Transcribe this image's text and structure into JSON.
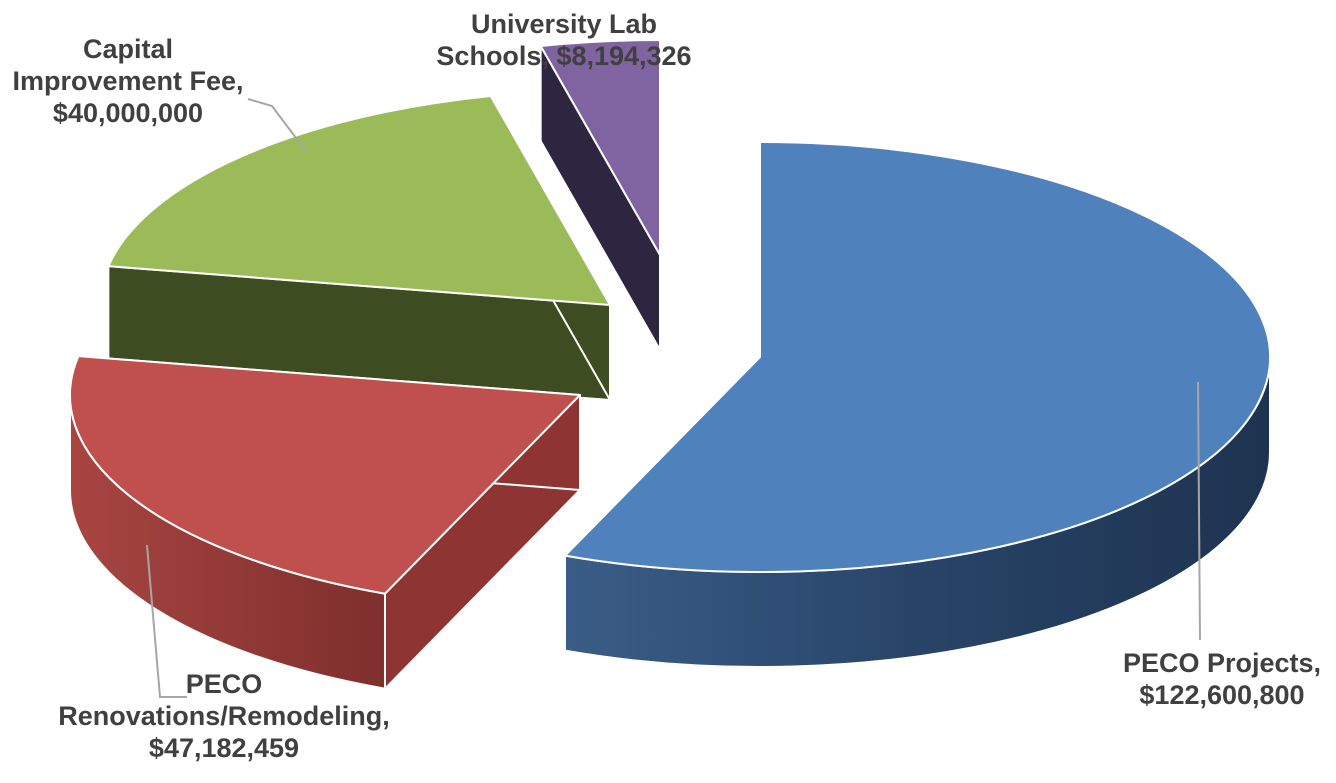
{
  "chart_data": {
    "type": "pie",
    "style": "3d-exploded",
    "title": "",
    "slices": [
      {
        "name": "PECO Projects",
        "value": 122600800,
        "value_label": "$122,600,800",
        "label_lines": [
          "PECO Projects,",
          "$122,600,800"
        ],
        "color": "#4F81BD",
        "side_color": "#253E5E"
      },
      {
        "name": "PECO Renovations/Remodeling",
        "value": 47182459,
        "value_label": "$47,182,459",
        "label_lines": [
          "PECO",
          "Renovations/Remodeling,",
          "$47,182,459"
        ],
        "color": "#C0504D",
        "side_color": "#8E3534"
      },
      {
        "name": "Capital Improvement Fee",
        "value": 40000000,
        "value_label": "$40,000,000",
        "label_lines": [
          "Capital",
          "Improvement Fee,",
          "$40,000,000"
        ],
        "color": "#9BBB59",
        "side_color": "#3E4C22"
      },
      {
        "name": "University Lab Schools",
        "value": 8194326,
        "value_label": "$8,194,326",
        "label_lines": [
          "University Lab",
          "Schools, $8,194,326"
        ],
        "color": "#8064A2",
        "side_color": "#2E2540"
      }
    ],
    "legend": "none",
    "data_labels": "outside-with-leader-lines"
  }
}
